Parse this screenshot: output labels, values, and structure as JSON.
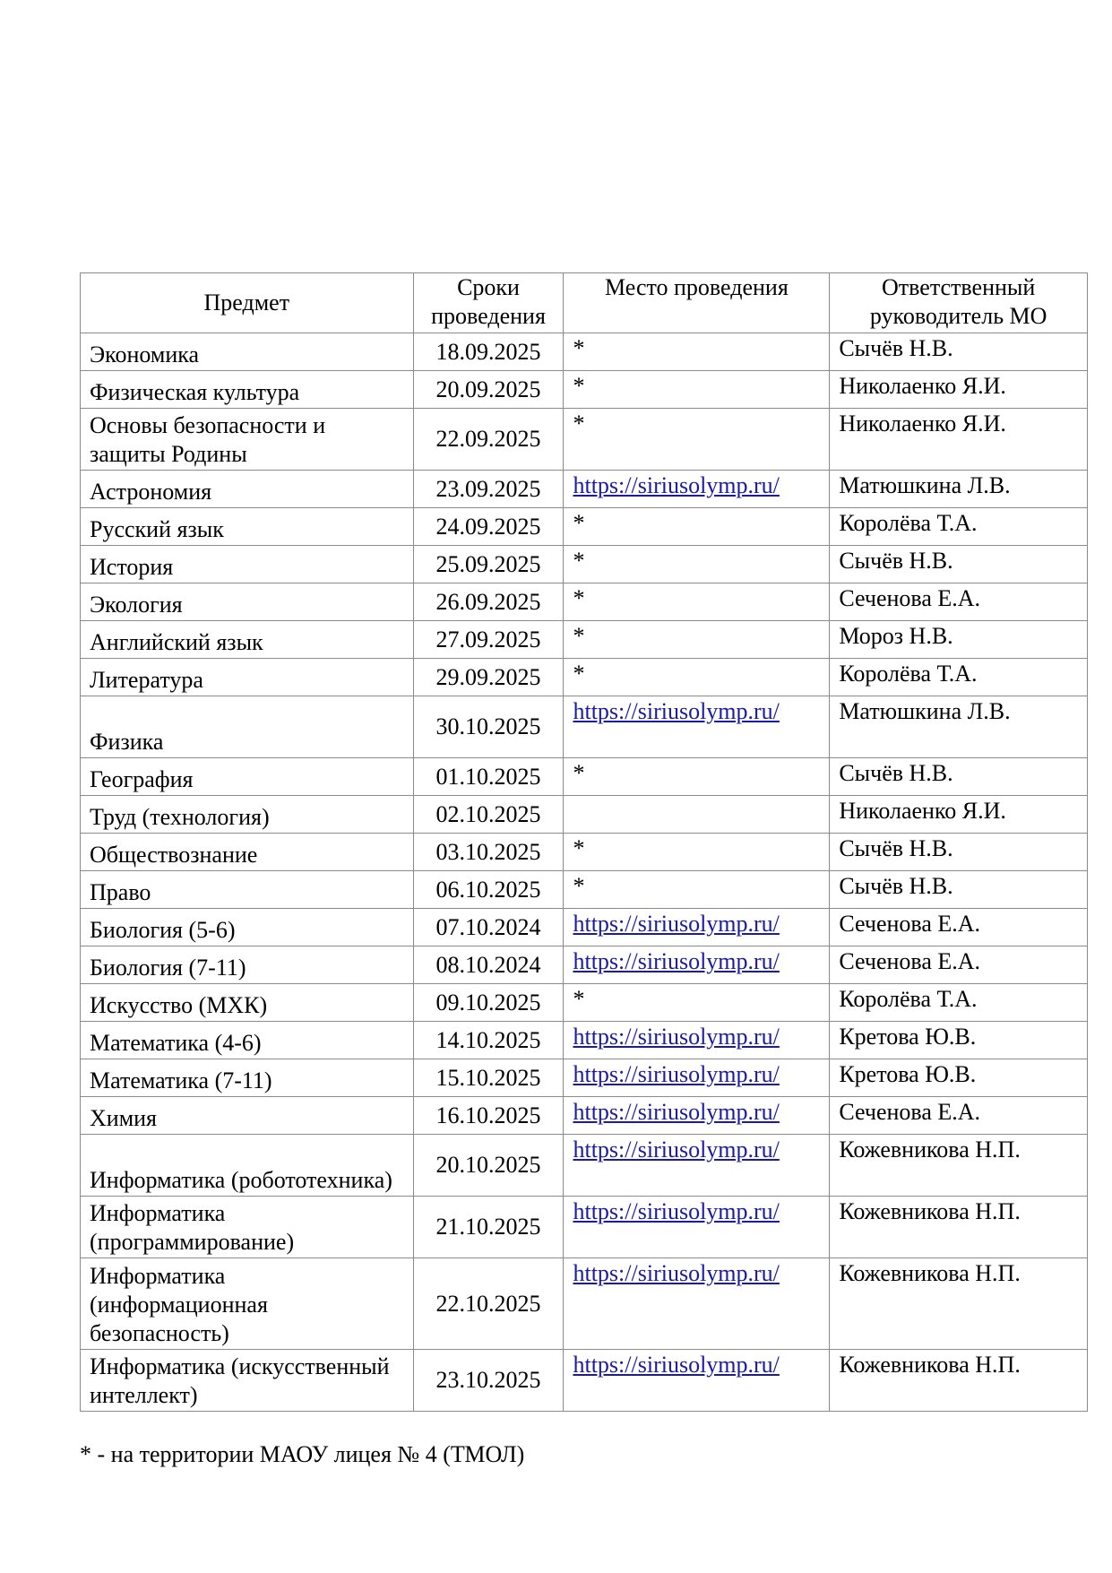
{
  "headers": [
    "Предмет",
    "Сроки проведения",
    "Место проведения",
    "Ответственный руководитель МО"
  ],
  "rows": [
    {
      "subject": "Экономика",
      "date": "18.09.2025",
      "place": "*",
      "responsible": "Сычёв Н.В.",
      "lines": 1
    },
    {
      "subject": "Физическая культура",
      "date": "20.09.2025",
      "place": "*",
      "responsible": "Николаенко Я.И.",
      "lines": 1
    },
    {
      "subject": "Основы безопасности и защиты Родины",
      "date": "22.09.2025",
      "place": "*",
      "responsible": "Николаенко Я.И.",
      "lines": 2
    },
    {
      "subject": "Астрономия",
      "date": "23.09.2025",
      "place": "https://siriusolymp.ru/",
      "responsible": "Матюшкина Л.В.",
      "lines": 1
    },
    {
      "subject": "Русский язык",
      "date": "24.09.2025",
      "place": "*",
      "responsible": "Королёва Т.А.",
      "lines": 1
    },
    {
      "subject": "История",
      "date": "25.09.2025",
      "place": "*",
      "responsible": "Сычёв Н.В.",
      "lines": 1
    },
    {
      "subject": "Экология",
      "date": "26.09.2025",
      "place": "*",
      "responsible": "Сеченова Е.А.",
      "lines": 1
    },
    {
      "subject": "Английский язык",
      "date": "27.09.2025",
      "place": "*",
      "responsible": "Мороз Н.В.",
      "lines": 1
    },
    {
      "subject": "Литература",
      "date": "29.09.2025",
      "place": "*",
      "responsible": "Королёва Т.А.",
      "lines": 1
    },
    {
      "subject": "Физика",
      "date": "30.10.2025",
      "place": "https://siriusolymp.ru/",
      "responsible": "Матюшкина Л.В.",
      "lines": 2
    },
    {
      "subject": "География",
      "date": "01.10.2025",
      "place": "*",
      "responsible": "Сычёв Н.В.",
      "lines": 1
    },
    {
      "subject": "Труд (технология)",
      "date": "02.10.2025",
      "place": "",
      "responsible": "Николаенко Я.И.",
      "lines": 1
    },
    {
      "subject": "Обществознание",
      "date": "03.10.2025",
      "place": "*",
      "responsible": "Сычёв Н.В.",
      "lines": 1
    },
    {
      "subject": "Право",
      "date": "06.10.2025",
      "place": "*",
      "responsible": "Сычёв Н.В.",
      "lines": 1
    },
    {
      "subject": "Биология (5-6)",
      "date": "07.10.2024",
      "place": "https://siriusolymp.ru/",
      "responsible": "Сеченова Е.А.",
      "lines": 1
    },
    {
      "subject": "Биология (7-11)",
      "date": "08.10.2024",
      "place": "https://siriusolymp.ru/",
      "responsible": "Сеченова Е.А.",
      "lines": 1
    },
    {
      "subject": "Искусство (МХК)",
      "date": "09.10.2025",
      "place": "*",
      "responsible": "Королёва Т.А.",
      "lines": 1
    },
    {
      "subject": "Математика (4-6)",
      "date": "14.10.2025",
      "place": "https://siriusolymp.ru/",
      "responsible": "Кретова Ю.В.",
      "lines": 1
    },
    {
      "subject": "Математика (7-11)",
      "date": "15.10.2025",
      "place": "https://siriusolymp.ru/",
      "responsible": "Кретова Ю.В.",
      "lines": 1
    },
    {
      "subject": "Химия",
      "date": "16.10.2025",
      "place": "https://siriusolymp.ru/",
      "responsible": "Сеченова Е.А.",
      "lines": 1
    },
    {
      "subject": "Информатика (робототехника)",
      "date": "20.10.2025",
      "place": "https://siriusolymp.ru/",
      "responsible": "Кожевникова Н.П.",
      "lines": 2
    },
    {
      "subject": "Информатика (программирование)",
      "date": "21.10.2025",
      "place": "https://siriusolymp.ru/",
      "responsible": "Кожевникова Н.П.",
      "lines": 2
    },
    {
      "subject": "Информатика (информационная безопасность)",
      "date": "22.10.2025",
      "place": "https://siriusolymp.ru/",
      "responsible": "Кожевникова Н.П.",
      "lines": 3
    },
    {
      "subject": "Информатика (искусственный интеллект)",
      "date": "23.10.2025",
      "place": "https://siriusolymp.ru/",
      "responsible": "Кожевникова Н.П.",
      "lines": 2
    }
  ],
  "footnote": "* - на территории МАОУ лицея № 4 (ТМОЛ)",
  "colors": {
    "link": "#1a1aa6",
    "border": "#8a8a8a"
  }
}
